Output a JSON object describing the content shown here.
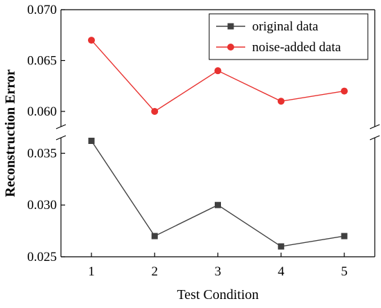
{
  "chart_data": {
    "type": "line",
    "xlabel": "Test Condition",
    "ylabel": "Reconstruction Error",
    "x": [
      1,
      2,
      3,
      4,
      5
    ],
    "x_ticks": [
      "1",
      "2",
      "3",
      "4",
      "5"
    ],
    "y_axis_break": true,
    "y_segments": [
      {
        "range": [
          0.025,
          0.0365
        ],
        "ticks": [
          "0.025",
          "0.030",
          "0.035"
        ],
        "tick_values": [
          0.025,
          0.03,
          0.035
        ]
      },
      {
        "range": [
          0.0585,
          0.07
        ],
        "ticks": [
          "0.060",
          "0.065",
          "0.070"
        ],
        "tick_values": [
          0.06,
          0.065,
          0.07
        ]
      }
    ],
    "series": [
      {
        "name": "original data",
        "values": [
          0.0362,
          0.027,
          0.03,
          0.026,
          0.027
        ],
        "color": "#404040",
        "marker": "square"
      },
      {
        "name": "noise-added data",
        "values": [
          0.067,
          0.06,
          0.064,
          0.061,
          0.062
        ],
        "color": "#e8312f",
        "marker": "circle"
      }
    ],
    "legend_position": "top-right",
    "grid": false
  }
}
